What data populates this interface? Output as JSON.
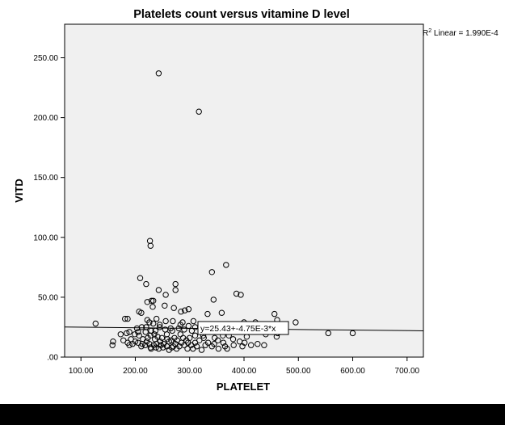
{
  "chart_data": {
    "type": "scatter",
    "title": "Platelets count versus vitamine D level",
    "xlabel": "PLATELET",
    "ylabel": "VITD",
    "xlim": [
      70,
      730
    ],
    "ylim": [
      0,
      278
    ],
    "x_ticks": [
      100,
      200,
      300,
      400,
      500,
      600,
      700
    ],
    "x_tick_labels": [
      "100.00",
      "200.00",
      "300.00",
      "400.00",
      "500.00",
      "600.00",
      "700.00"
    ],
    "y_ticks": [
      0,
      50,
      100,
      150,
      200,
      250
    ],
    "y_tick_labels": [
      ".00",
      "50.00",
      "100.00",
      "150.00",
      "200.00",
      "250.00"
    ],
    "r2_prefix": "R",
    "r2_sup": "2",
    "r2_text": " Linear = 1.990E-4",
    "fit_line": {
      "intercept": 25.43,
      "slope": -0.00475,
      "label": "y=25.43+-4.75E-3*x"
    },
    "grid": false,
    "plot_background": "#f0f0f0",
    "marker_color": "#000000",
    "points": [
      [
        243,
        237
      ],
      [
        317,
        205
      ],
      [
        227,
        97
      ],
      [
        228,
        93
      ],
      [
        367,
        77
      ],
      [
        209,
        66
      ],
      [
        341,
        71
      ],
      [
        220,
        61
      ],
      [
        274,
        61
      ],
      [
        243,
        56
      ],
      [
        274,
        56
      ],
      [
        386,
        53
      ],
      [
        394,
        52
      ],
      [
        256,
        52
      ],
      [
        230,
        47
      ],
      [
        233,
        47
      ],
      [
        222,
        46
      ],
      [
        344,
        48
      ],
      [
        271,
        41
      ],
      [
        359,
        37
      ],
      [
        333,
        36
      ],
      [
        291,
        39
      ],
      [
        298,
        40
      ],
      [
        284,
        38
      ],
      [
        254,
        43
      ],
      [
        232,
        42
      ],
      [
        207,
        38
      ],
      [
        211,
        37
      ],
      [
        456,
        36
      ],
      [
        186,
        32
      ],
      [
        181,
        32
      ],
      [
        239,
        32
      ],
      [
        256,
        30
      ],
      [
        222,
        31
      ],
      [
        226,
        29
      ],
      [
        127,
        28
      ],
      [
        495,
        29
      ],
      [
        400,
        29
      ],
      [
        421,
        29
      ],
      [
        337,
        27
      ],
      [
        348,
        27
      ],
      [
        298,
        26
      ],
      [
        310,
        25
      ],
      [
        212,
        25
      ],
      [
        245,
        25
      ],
      [
        280,
        24
      ],
      [
        265,
        24
      ],
      [
        255,
        23
      ],
      [
        290,
        23
      ],
      [
        304,
        22
      ],
      [
        229,
        22
      ],
      [
        237,
        22
      ],
      [
        268,
        22
      ],
      [
        219,
        21
      ],
      [
        205,
        21
      ],
      [
        189,
        21
      ],
      [
        184,
        20
      ],
      [
        173,
        19
      ],
      [
        199,
        19
      ],
      [
        258,
        19
      ],
      [
        235,
        19
      ],
      [
        283,
        19
      ],
      [
        310,
        18
      ],
      [
        325,
        18
      ],
      [
        361,
        18
      ],
      [
        372,
        18
      ],
      [
        405,
        17
      ],
      [
        440,
        19
      ],
      [
        462,
        20
      ],
      [
        555,
        20
      ],
      [
        600,
        20
      ],
      [
        207,
        18
      ],
      [
        228,
        18
      ],
      [
        241,
        17
      ],
      [
        223,
        16
      ],
      [
        249,
        16
      ],
      [
        272,
        16
      ],
      [
        288,
        16
      ],
      [
        300,
        16
      ],
      [
        326,
        16
      ],
      [
        346,
        16
      ],
      [
        380,
        15
      ],
      [
        192,
        15
      ],
      [
        214,
        15
      ],
      [
        236,
        15
      ],
      [
        259,
        15
      ],
      [
        266,
        14
      ],
      [
        277,
        14
      ],
      [
        294,
        14
      ],
      [
        318,
        14
      ],
      [
        352,
        14
      ],
      [
        392,
        13
      ],
      [
        178,
        14
      ],
      [
        200,
        13
      ],
      [
        221,
        13
      ],
      [
        246,
        13
      ],
      [
        262,
        13
      ],
      [
        285,
        12
      ],
      [
        297,
        12
      ],
      [
        310,
        12
      ],
      [
        334,
        12
      ],
      [
        362,
        12
      ],
      [
        401,
        12
      ],
      [
        425,
        11
      ],
      [
        159,
        13
      ],
      [
        186,
        12
      ],
      [
        205,
        12
      ],
      [
        213,
        11
      ],
      [
        226,
        11
      ],
      [
        239,
        11
      ],
      [
        252,
        11
      ],
      [
        274,
        11
      ],
      [
        290,
        10
      ],
      [
        303,
        10
      ],
      [
        329,
        10
      ],
      [
        345,
        11
      ],
      [
        381,
        10
      ],
      [
        413,
        10
      ],
      [
        437,
        10
      ],
      [
        195,
        11
      ],
      [
        218,
        10
      ],
      [
        234,
        10
      ],
      [
        247,
        10
      ],
      [
        258,
        9
      ],
      [
        270,
        9
      ],
      [
        281,
        9
      ],
      [
        313,
        9
      ],
      [
        341,
        9
      ],
      [
        365,
        9
      ],
      [
        397,
        9
      ],
      [
        158,
        10
      ],
      [
        189,
        10
      ],
      [
        211,
        9
      ],
      [
        228,
        8
      ],
      [
        238,
        8
      ],
      [
        251,
        8
      ],
      [
        267,
        8
      ],
      [
        276,
        7
      ],
      [
        296,
        7
      ],
      [
        322,
        6
      ],
      [
        353,
        7
      ],
      [
        369,
        7
      ],
      [
        229,
        7
      ],
      [
        262,
        6
      ],
      [
        243,
        7
      ],
      [
        306,
        7
      ],
      [
        460,
        17
      ],
      [
        451,
        24
      ],
      [
        461,
        31
      ],
      [
        468,
        25
      ],
      [
        220,
        25
      ],
      [
        203,
        24
      ],
      [
        233,
        28
      ],
      [
        245,
        27
      ],
      [
        269,
        30
      ],
      [
        307,
        30
      ],
      [
        287,
        29
      ],
      [
        283,
        27
      ]
    ]
  }
}
